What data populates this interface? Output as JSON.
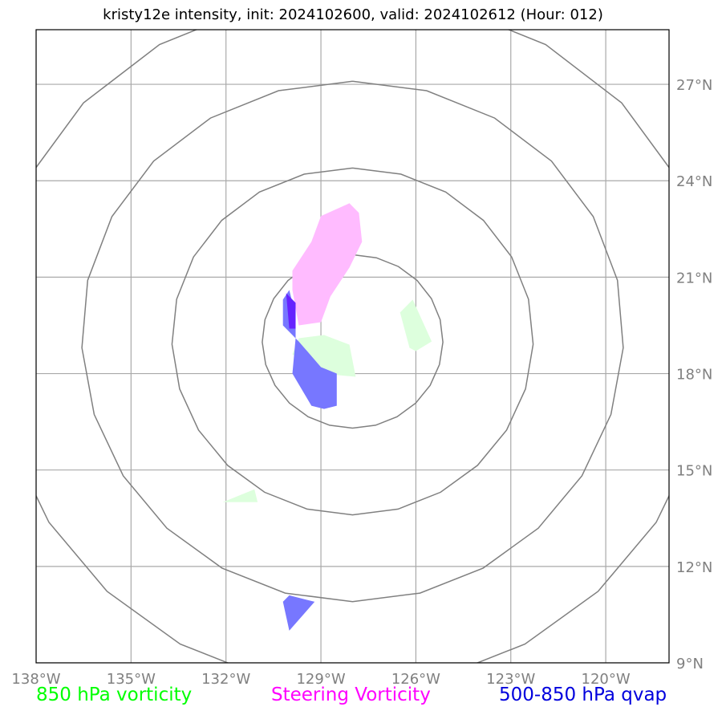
{
  "title": "kristy12e intensity, init: 2024102600, valid: 2024102612 (Hour: 012)",
  "map": {
    "lon_range": [
      -138,
      -118
    ],
    "lat_range": [
      9,
      28.7
    ],
    "lon_ticks": [
      {
        "value": -138,
        "label": "138°W"
      },
      {
        "value": -135,
        "label": "135°W"
      },
      {
        "value": -132,
        "label": "132°W"
      },
      {
        "value": -129,
        "label": "129°W"
      },
      {
        "value": -126,
        "label": "126°W"
      },
      {
        "value": -123,
        "label": "123°W"
      },
      {
        "value": -120,
        "label": "120°W"
      }
    ],
    "lat_ticks": [
      {
        "value": 9,
        "label": "9°N"
      },
      {
        "value": 12,
        "label": "12°N"
      },
      {
        "value": 15,
        "label": "15°N"
      },
      {
        "value": 18,
        "label": "18°N"
      },
      {
        "value": 21,
        "label": "21°N"
      },
      {
        "value": 24,
        "label": "24°N"
      },
      {
        "value": 27,
        "label": "27°N"
      }
    ],
    "range_ring_center": {
      "lon": -128,
      "lat": 19
    },
    "range_ring_radii_km": [
      300,
      600,
      900,
      1200
    ],
    "gridline_color": "#a9a9a9",
    "ring_color": "#808080"
  },
  "fields": [
    {
      "name": "850 hPa vorticity",
      "color": "#00ff00",
      "fill": "#ddffdd",
      "areas": [
        [
          [
            -129.7,
            19.1
          ],
          [
            -128.9,
            19.2
          ],
          [
            -128.1,
            18.9
          ],
          [
            -127.9,
            17.9
          ],
          [
            -129.0,
            18.0
          ],
          [
            -129.9,
            18.6
          ]
        ],
        [
          [
            -126.5,
            19.9
          ],
          [
            -126.1,
            20.3
          ],
          [
            -125.5,
            19.0
          ],
          [
            -126.0,
            18.7
          ],
          [
            -126.2,
            18.8
          ]
        ],
        [
          [
            -132.1,
            14.0
          ],
          [
            -131.1,
            14.4
          ],
          [
            -131.0,
            14.0
          ]
        ]
      ]
    },
    {
      "name": "Steering Vorticity",
      "color": "#ff00ff",
      "fill": "#ffbbff",
      "areas": [
        [
          [
            -129.9,
            21.2
          ],
          [
            -129.3,
            22.1
          ],
          [
            -129.0,
            22.9
          ],
          [
            -128.1,
            23.3
          ],
          [
            -127.8,
            23.0
          ],
          [
            -127.7,
            22.1
          ],
          [
            -128.1,
            21.3
          ],
          [
            -128.7,
            20.4
          ],
          [
            -129.0,
            19.6
          ],
          [
            -129.7,
            19.5
          ],
          [
            -129.9,
            20.6
          ]
        ]
      ]
    },
    {
      "name": "500-850 hPa qvap",
      "color": "#0000dd",
      "fill": "#7777ff",
      "areas": [
        [
          [
            -130.2,
            20.3
          ],
          [
            -130.0,
            20.6
          ],
          [
            -129.8,
            19.8
          ],
          [
            -129.8,
            19.1
          ],
          [
            -129.9,
            18.0
          ],
          [
            -129.3,
            17.0
          ],
          [
            -128.9,
            16.9
          ],
          [
            -128.5,
            17.0
          ],
          [
            -128.5,
            18.0
          ],
          [
            -129.0,
            18.2
          ],
          [
            -129.7,
            19.0
          ],
          [
            -130.2,
            19.5
          ]
        ],
        [
          [
            -130.2,
            10.9
          ],
          [
            -130.0,
            11.1
          ],
          [
            -129.2,
            10.9
          ],
          [
            -130.0,
            10.0
          ]
        ]
      ],
      "dark_areas": [
        [
          [
            -130.1,
            20.5
          ],
          [
            -129.8,
            20.2
          ],
          [
            -129.8,
            19.4
          ],
          [
            -130.0,
            19.4
          ]
        ]
      ]
    }
  ]
}
